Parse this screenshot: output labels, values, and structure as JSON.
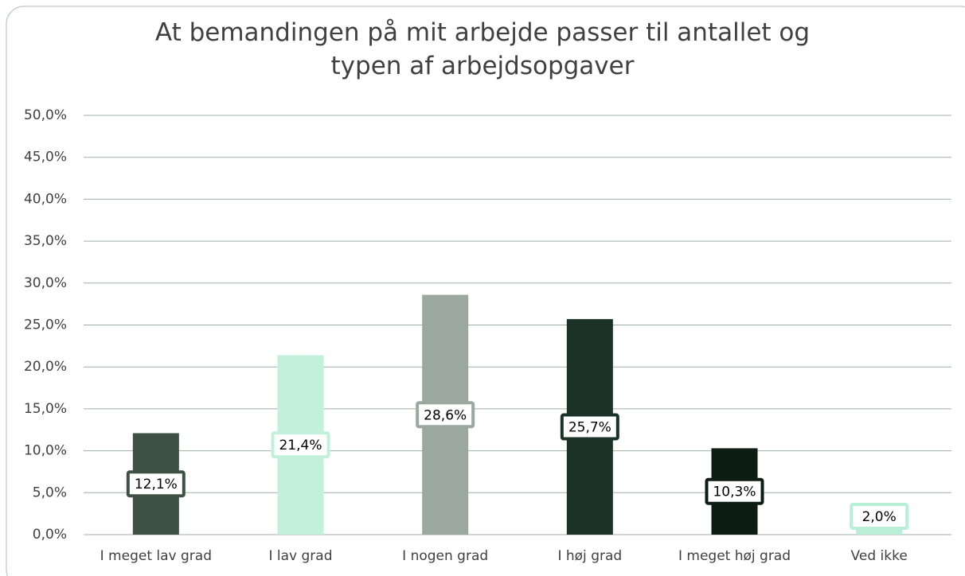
{
  "chart_data": {
    "type": "bar",
    "title": "At bemandingen på mit arbejde passer til antallet og typen af arbejdsopgaver",
    "categories": [
      "I meget lav grad",
      "I lav grad",
      "I nogen grad",
      "I høj grad",
      "I meget høj grad",
      "Ved ikke"
    ],
    "values": [
      12.1,
      21.4,
      28.6,
      25.7,
      10.3,
      2.0
    ],
    "value_labels": [
      "12,1%",
      "21,4%",
      "28,6%",
      "25,7%",
      "10,3%",
      "2,0%"
    ],
    "colors": [
      "#3f5045",
      "#c2f0da",
      "#9aa8a0",
      "#1a3326",
      "#0e1d14",
      "#b8efd6"
    ],
    "ylim": [
      0,
      50
    ],
    "yticks": [
      {
        "value": 0,
        "label": "0,0%"
      },
      {
        "value": 5,
        "label": "5,0%"
      },
      {
        "value": 10,
        "label": "10,0%"
      },
      {
        "value": 15,
        "label": "15,0%"
      },
      {
        "value": 20,
        "label": "20,0%"
      },
      {
        "value": 25,
        "label": "25,0%"
      },
      {
        "value": 30,
        "label": "30,0%"
      },
      {
        "value": 35,
        "label": "35,0%"
      },
      {
        "value": 40,
        "label": "40,0%"
      },
      {
        "value": 45,
        "label": "45,0%"
      },
      {
        "value": 50,
        "label": "50,0%"
      }
    ],
    "grid": true
  }
}
